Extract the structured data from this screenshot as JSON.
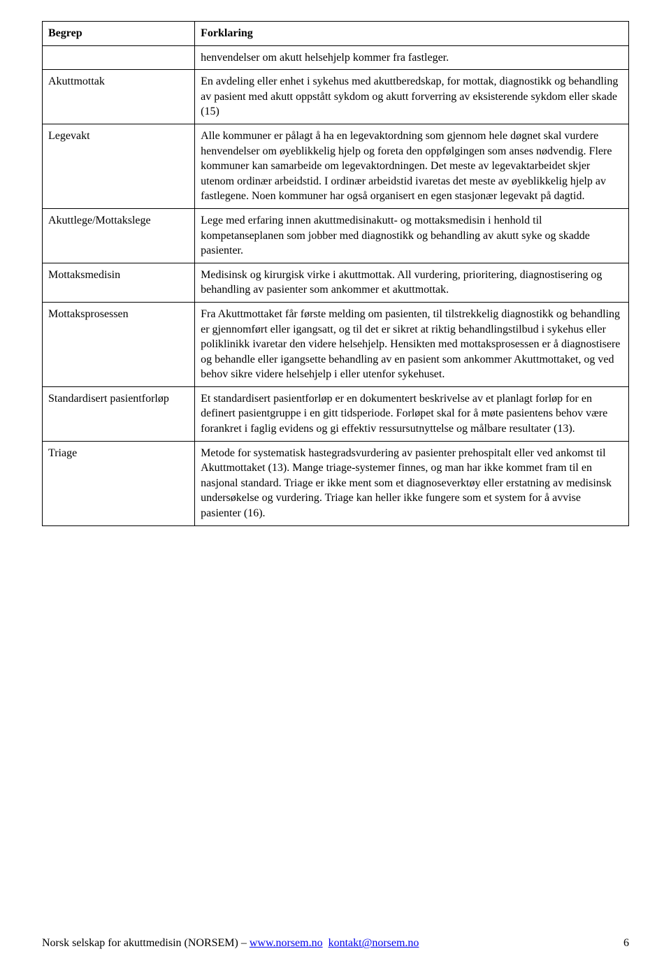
{
  "header": {
    "term_label": "Begrep",
    "desc_label": "Forklaring"
  },
  "intro_row": {
    "cell": "henvendelser om akutt helsehjelp kommer fra fastleger."
  },
  "rows": [
    {
      "term": "Akuttmottak",
      "desc": "En avdeling eller enhet i sykehus med akuttberedskap, for mottak, diagnostikk og behandling av pasient med akutt oppstått sykdom og akutt forverring av eksisterende sykdom eller skade (15)"
    },
    {
      "term": "Legevakt",
      "desc": "Alle kommuner er pålagt å ha en legevaktordning som gjennom hele døgnet skal vurdere henvendelser om øyeblikkelig hjelp og foreta den oppfølgingen som anses nødvendig. Flere kommuner kan samarbeide om legevaktordningen. Det meste av legevaktarbeidet skjer utenom ordinær arbeidstid. I ordinær arbeidstid ivaretas det meste av øyeblikkelig hjelp av fastlegene. Noen kommuner har også organisert en egen stasjonær legevakt på dagtid."
    },
    {
      "term": "Akuttlege/Mottakslege",
      "desc": "Lege med erfaring innen akuttmedisinakutt- og mottaksmedisin i henhold til kompetanseplanen som jobber med diagnostikk og behandling av akutt syke og skadde pasienter."
    },
    {
      "term": "Mottaksmedisin",
      "desc": "Medisinsk og kirurgisk virke i akuttmottak. All vurdering, prioritering, diagnostisering og behandling av pasienter som ankommer et akuttmottak."
    },
    {
      "term": "Mottaksprosessen",
      "desc": "Fra Akuttmottaket får første melding om pasienten, til tilstrekkelig diagnostikk og behandling er gjennomført eller igangsatt, og til det er sikret at riktig behandlingstilbud i sykehus eller poliklinikk ivaretar den videre helsehjelp. Hensikten med mottaksprosessen er å diagnostisere og behandle eller igangsette behandling av en pasient som ankommer Akuttmottaket, og ved behov sikre videre helsehjelp i eller utenfor sykehuset."
    },
    {
      "term": "Standardisert pasientforløp",
      "desc": "Et standardisert pasientforløp er en dokumentert beskrivelse av et planlagt forløp for en definert pasientgruppe i en gitt tidsperiode. Forløpet skal for å møte pasientens behov være forankret i faglig evidens og gi effektiv ressursutnyttelse og målbare resultater (13)."
    },
    {
      "term": "Triage",
      "desc": "Metode for systematisk hastegradsvurdering av pasienter prehospitalt eller ved ankomst til Akuttmottaket (13). Mange triage-systemer finnes, og man har ikke kommet fram til en nasjonal standard. Triage er ikke ment som et diagnoseverktøy eller erstatning av medisinsk undersøkelse og vurdering. Triage kan heller ikke fungere som et system for å avvise pasienter (16)."
    }
  ],
  "footer": {
    "org": "Norsk selskap for akuttmedisin (NORSEM) – ",
    "link1_text": "www.norsem.no",
    "link2_text": "kontakt@norsem.no",
    "page_number": "6"
  }
}
